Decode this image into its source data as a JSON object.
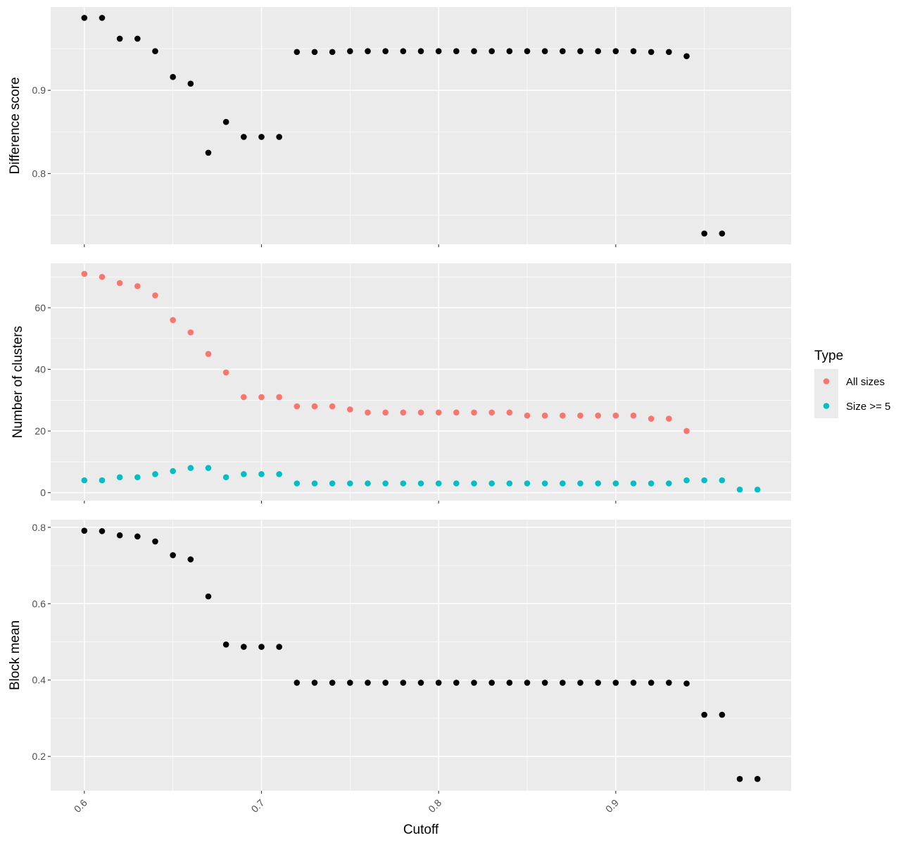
{
  "chart_data": {
    "type": "scatter",
    "colors": {
      "panel_background": "#EBEBEB",
      "grid": "#FFFFFF",
      "default_point": "#000000",
      "tick_text": "#4D4D4D"
    },
    "x_axis": {
      "label": "Cutoff",
      "range": [
        0.581,
        0.999
      ],
      "ticks": [
        0.6,
        0.7,
        0.8,
        0.9
      ],
      "tick_labels": [
        "0.6",
        "0.7",
        "0.8",
        "0.9"
      ],
      "tick_label_rotation": "45 degrees"
    },
    "legend": {
      "title": "Type",
      "placement": "right",
      "entries": [
        {
          "name": "All sizes",
          "color": "#F8766D"
        },
        {
          "name": "Size >= 5",
          "color": "#00BFC4"
        }
      ]
    },
    "panels": [
      {
        "ylabel": "Difference score",
        "ylim": [
          0.715,
          1.0
        ],
        "y_ticks": [
          0.8,
          0.9
        ],
        "y_tick_labels": [
          "0.8",
          "0.9"
        ],
        "series": [
          {
            "x": [
              0.6,
              0.61,
              0.62,
              0.63,
              0.64,
              0.65,
              0.66,
              0.67,
              0.68,
              0.69,
              0.7,
              0.71,
              0.72,
              0.73,
              0.74,
              0.75,
              0.76,
              0.77,
              0.78,
              0.79,
              0.8,
              0.81,
              0.82,
              0.83,
              0.84,
              0.85,
              0.86,
              0.87,
              0.88,
              0.89,
              0.9,
              0.91,
              0.92,
              0.93,
              0.94,
              0.95,
              0.96
            ],
            "y": [
              0.987,
              0.987,
              0.962,
              0.962,
              0.947,
              0.916,
              0.908,
              0.825,
              0.862,
              0.844,
              0.844,
              0.844,
              0.946,
              0.946,
              0.946,
              0.947,
              0.947,
              0.947,
              0.947,
              0.947,
              0.947,
              0.947,
              0.947,
              0.947,
              0.947,
              0.947,
              0.947,
              0.947,
              0.947,
              0.947,
              0.947,
              0.947,
              0.946,
              0.946,
              0.941,
              0.728,
              0.728
            ]
          }
        ]
      },
      {
        "ylabel": "Number of clusters",
        "ylim": [
          -2.6,
          74.4
        ],
        "y_ticks": [
          0,
          20,
          40,
          60
        ],
        "y_tick_labels": [
          "0",
          "20",
          "40",
          "60"
        ],
        "series": [
          {
            "name": "All sizes",
            "x": [
              0.6,
              0.61,
              0.62,
              0.63,
              0.64,
              0.65,
              0.66,
              0.67,
              0.68,
              0.69,
              0.7,
              0.71,
              0.72,
              0.73,
              0.74,
              0.75,
              0.76,
              0.77,
              0.78,
              0.79,
              0.8,
              0.81,
              0.82,
              0.83,
              0.84,
              0.85,
              0.86,
              0.87,
              0.88,
              0.89,
              0.9,
              0.91,
              0.92,
              0.93,
              0.94
            ],
            "y": [
              71,
              70,
              68,
              67,
              64,
              56,
              52,
              45,
              39,
              31,
              31,
              31,
              28,
              28,
              28,
              27,
              26,
              26,
              26,
              26,
              26,
              26,
              26,
              26,
              26,
              25,
              25,
              25,
              25,
              25,
              25,
              25,
              24,
              24,
              20
            ]
          },
          {
            "name": "Size >= 5",
            "x": [
              0.6,
              0.61,
              0.62,
              0.63,
              0.64,
              0.65,
              0.66,
              0.67,
              0.68,
              0.69,
              0.7,
              0.71,
              0.72,
              0.73,
              0.74,
              0.75,
              0.76,
              0.77,
              0.78,
              0.79,
              0.8,
              0.81,
              0.82,
              0.83,
              0.84,
              0.85,
              0.86,
              0.87,
              0.88,
              0.89,
              0.9,
              0.91,
              0.92,
              0.93,
              0.94,
              0.95,
              0.96,
              0.97,
              0.98
            ],
            "y": [
              4,
              4,
              5,
              5,
              6,
              7,
              8,
              8,
              5,
              6,
              6,
              6,
              3,
              3,
              3,
              3,
              3,
              3,
              3,
              3,
              3,
              3,
              3,
              3,
              3,
              3,
              3,
              3,
              3,
              3,
              3,
              3,
              3,
              3,
              4,
              4,
              4,
              1,
              1
            ]
          }
        ]
      },
      {
        "ylabel": "Block mean",
        "ylim": [
          0.11,
          0.82
        ],
        "y_ticks": [
          0.2,
          0.4,
          0.6,
          0.8
        ],
        "y_tick_labels": [
          "0.2",
          "0.4",
          "0.6",
          "0.8"
        ],
        "series": [
          {
            "x": [
              0.6,
              0.61,
              0.62,
              0.63,
              0.64,
              0.65,
              0.66,
              0.67,
              0.68,
              0.69,
              0.7,
              0.71,
              0.72,
              0.73,
              0.74,
              0.75,
              0.76,
              0.77,
              0.78,
              0.79,
              0.8,
              0.81,
              0.82,
              0.83,
              0.84,
              0.85,
              0.86,
              0.87,
              0.88,
              0.89,
              0.9,
              0.91,
              0.92,
              0.93,
              0.94,
              0.95,
              0.96,
              0.97,
              0.98
            ],
            "y": [
              0.791,
              0.79,
              0.779,
              0.776,
              0.763,
              0.727,
              0.716,
              0.619,
              0.493,
              0.487,
              0.487,
              0.487,
              0.393,
              0.393,
              0.393,
              0.393,
              0.393,
              0.393,
              0.393,
              0.393,
              0.393,
              0.393,
              0.393,
              0.393,
              0.393,
              0.393,
              0.393,
              0.393,
              0.393,
              0.393,
              0.393,
              0.393,
              0.393,
              0.393,
              0.391,
              0.309,
              0.309,
              0.141,
              0.141
            ]
          }
        ]
      }
    ]
  }
}
